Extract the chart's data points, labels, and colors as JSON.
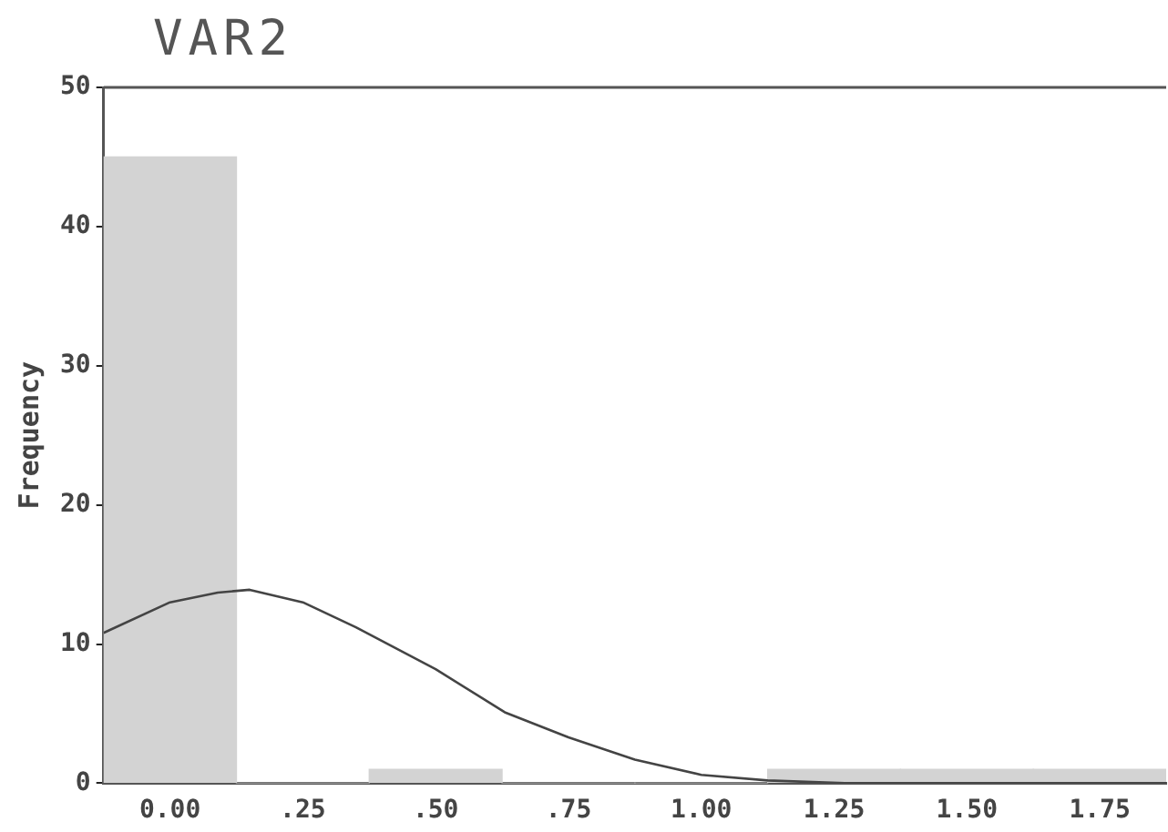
{
  "chart_data": {
    "type": "histogram",
    "title": "VAR2",
    "ylabel": "Frequency",
    "xlim": [
      -0.125,
      1.875
    ],
    "xticks": [
      {
        "value": 0,
        "label": "0.00"
      },
      {
        "value": 0.25,
        "label": ".25"
      },
      {
        "value": 0.5,
        "label": ".50"
      },
      {
        "value": 0.75,
        "label": ".75"
      },
      {
        "value": 1,
        "label": "1.00"
      },
      1.25,
      {
        "value": 1.5,
        "label": "1.50"
      },
      1.75
    ],
    "ylim": [
      0,
      50
    ],
    "yticks": [
      0,
      10,
      20,
      30,
      40,
      50
    ],
    "grid": false,
    "legend": false,
    "series": [
      {
        "color": "#d3d3d3",
        "bins": [
          -0.125,
          0.125,
          0.375,
          0.625,
          0.875,
          1.125,
          1.375,
          1.625,
          1.875
        ],
        "values": [
          45,
          0,
          1,
          0,
          0,
          1,
          1,
          1
        ]
      },
      {
        "type": "line",
        "color": "#444444",
        "x": [
          -0.125,
          0,
          0.09,
          0.15,
          0.25,
          0.35,
          0.5,
          0.63,
          0.75,
          0.875,
          1,
          1.125,
          1.27,
          1.5,
          1.875
        ],
        "values": [
          10.8,
          13,
          13.7,
          13.9,
          13,
          11.2,
          8.2,
          5.1,
          3.3,
          1.7,
          0.6,
          0.2,
          0,
          0,
          0
        ]
      }
    ]
  }
}
